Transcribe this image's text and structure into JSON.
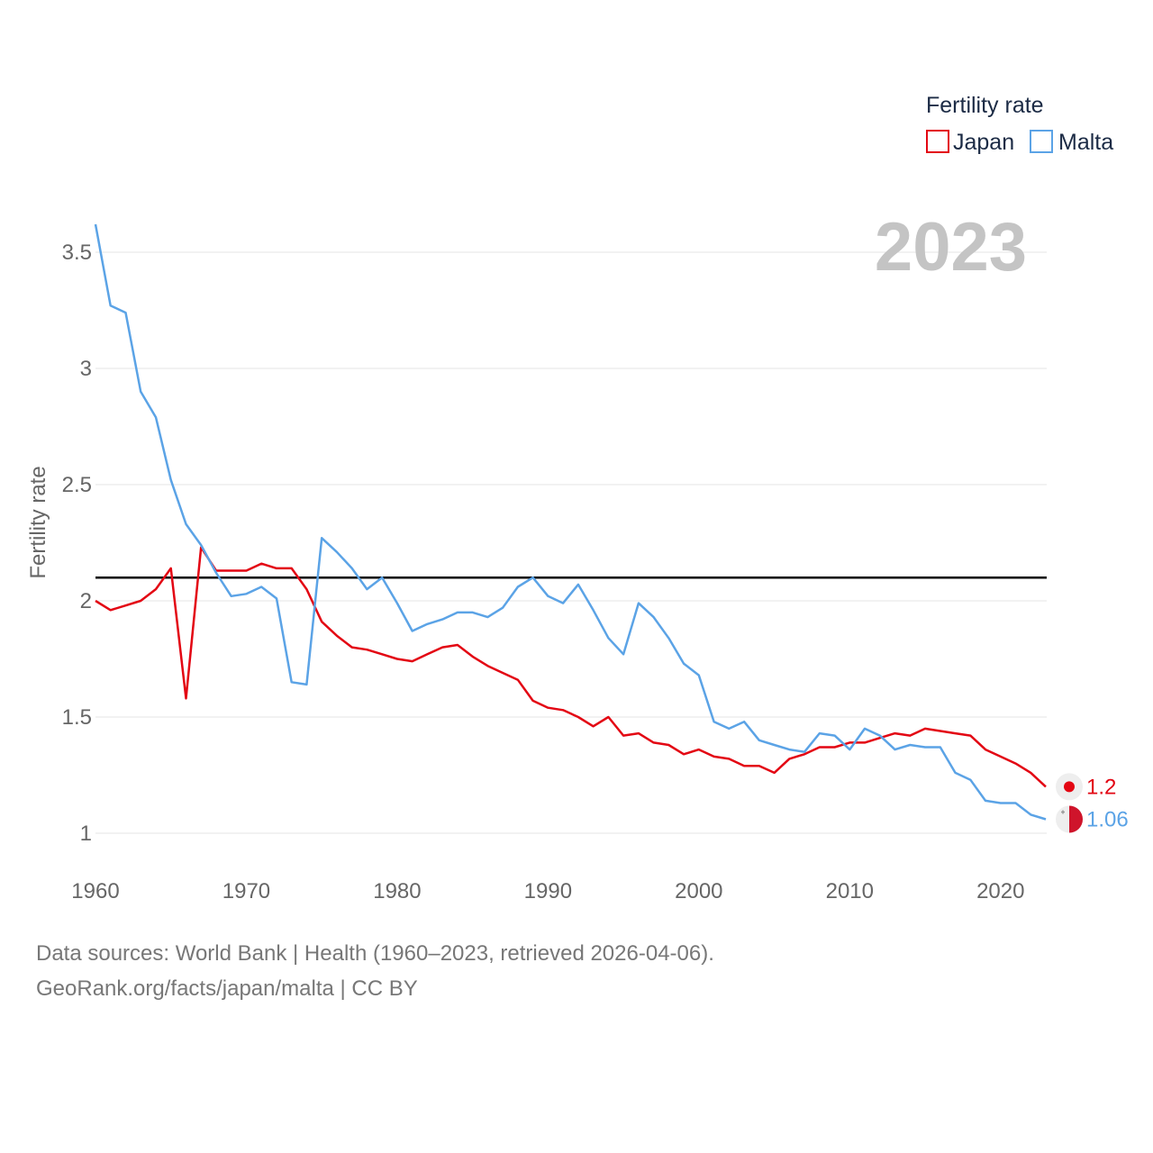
{
  "chart_data": {
    "type": "line",
    "title": "",
    "year_label": "2023",
    "xlabel": "",
    "ylabel": "Fertility rate",
    "xlim": [
      1960,
      2023
    ],
    "ylim": [
      0.85,
      3.62
    ],
    "x_ticks": [
      1960,
      1970,
      1980,
      1990,
      2000,
      2010,
      2020
    ],
    "x_tick_labels": [
      "1960",
      "1970",
      "1980",
      "1990",
      "2000",
      "2010",
      "2020"
    ],
    "y_ticks": [
      1,
      1.5,
      2,
      2.5,
      3,
      3.5
    ],
    "y_tick_labels": [
      "1",
      "1.5",
      "2",
      "2.5",
      "3",
      "3.5"
    ],
    "grid": true,
    "reference_line": 2.1,
    "legend": {
      "title": "Fertility rate",
      "position": "top-right"
    },
    "x": [
      1960,
      1961,
      1962,
      1963,
      1964,
      1965,
      1966,
      1967,
      1968,
      1969,
      1970,
      1971,
      1972,
      1973,
      1974,
      1975,
      1976,
      1977,
      1978,
      1979,
      1980,
      1981,
      1982,
      1983,
      1984,
      1985,
      1986,
      1987,
      1988,
      1989,
      1990,
      1991,
      1992,
      1993,
      1994,
      1995,
      1996,
      1997,
      1998,
      1999,
      2000,
      2001,
      2002,
      2003,
      2004,
      2005,
      2006,
      2007,
      2008,
      2009,
      2010,
      2011,
      2012,
      2013,
      2014,
      2015,
      2016,
      2017,
      2018,
      2019,
      2020,
      2021,
      2022,
      2023
    ],
    "series": [
      {
        "name": "Japan",
        "color": "#e30613",
        "end_label": "1.2",
        "values": [
          2.0,
          1.96,
          1.98,
          2.0,
          2.05,
          2.14,
          1.58,
          2.23,
          2.13,
          2.13,
          2.13,
          2.16,
          2.14,
          2.14,
          2.05,
          1.91,
          1.85,
          1.8,
          1.79,
          1.77,
          1.75,
          1.74,
          1.77,
          1.8,
          1.81,
          1.76,
          1.72,
          1.69,
          1.66,
          1.57,
          1.54,
          1.53,
          1.5,
          1.46,
          1.5,
          1.42,
          1.43,
          1.39,
          1.38,
          1.34,
          1.36,
          1.33,
          1.32,
          1.29,
          1.29,
          1.26,
          1.32,
          1.34,
          1.37,
          1.37,
          1.39,
          1.39,
          1.41,
          1.43,
          1.42,
          1.45,
          1.44,
          1.43,
          1.42,
          1.36,
          1.33,
          1.3,
          1.26,
          1.2
        ]
      },
      {
        "name": "Malta",
        "color": "#5ba3e6",
        "end_label": "1.06",
        "values": [
          3.62,
          3.27,
          3.24,
          2.9,
          2.79,
          2.52,
          2.33,
          2.24,
          2.12,
          2.02,
          2.03,
          2.06,
          2.01,
          1.65,
          1.64,
          2.27,
          2.21,
          2.14,
          2.05,
          2.1,
          1.99,
          1.87,
          1.9,
          1.92,
          1.95,
          1.95,
          1.93,
          1.97,
          2.06,
          2.1,
          2.02,
          1.99,
          2.07,
          1.96,
          1.84,
          1.77,
          1.99,
          1.93,
          1.84,
          1.73,
          1.68,
          1.48,
          1.45,
          1.48,
          1.4,
          1.38,
          1.36,
          1.35,
          1.43,
          1.42,
          1.36,
          1.45,
          1.42,
          1.36,
          1.38,
          1.37,
          1.37,
          1.26,
          1.23,
          1.14,
          1.13,
          1.13,
          1.08,
          1.06
        ]
      }
    ]
  },
  "footer": {
    "line1": "Data sources: World Bank | Health (1960–2023, retrieved 2026-04-06).",
    "line2": "GeoRank.org/facts/japan/malta | CC BY"
  },
  "colors": {
    "japan": "#e30613",
    "malta": "#5ba3e6",
    "reference": "#000000",
    "grid": "#e6e6e6"
  }
}
